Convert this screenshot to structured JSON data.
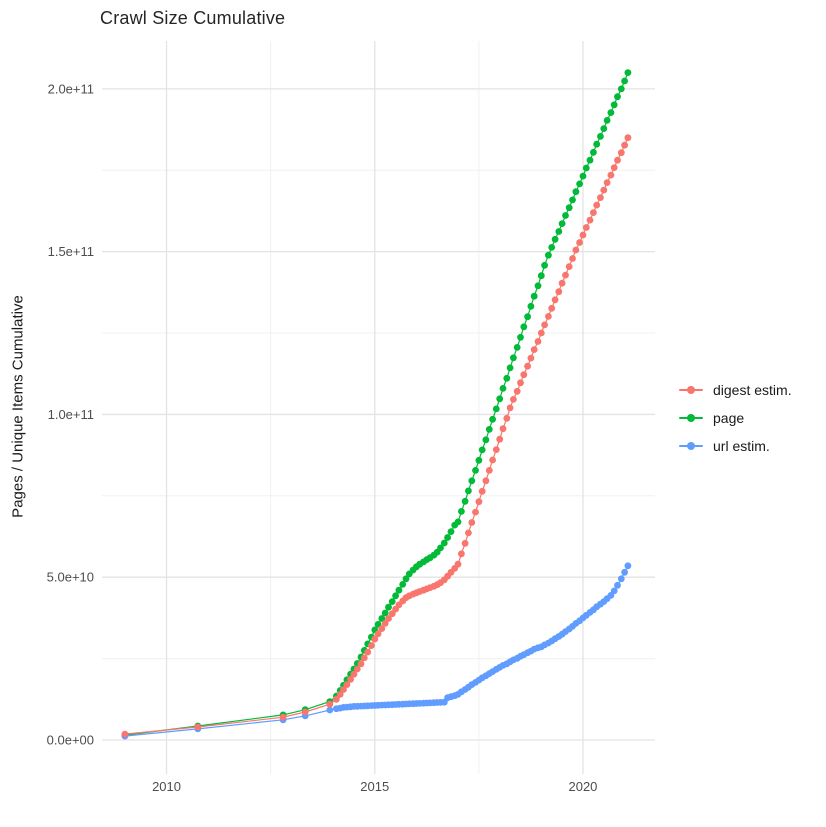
{
  "chart_data": {
    "type": "line",
    "title": "Crawl Size Cumulative",
    "xlabel": "",
    "ylabel": "Pages / Unique Items Cumulative",
    "grid": true,
    "legend_position": "right",
    "value_unit_multiplier": 1000000000.0,
    "xlim": [
      2008.45,
      2021.73
    ],
    "ylim_billions": [
      -10.45,
      214.7
    ],
    "x_ticks": {
      "labels": [
        "2010",
        "2015",
        "2020"
      ],
      "values": [
        2010,
        2015,
        2020
      ]
    },
    "x_minor": [
      2012.5,
      2017.5
    ],
    "y_ticks": {
      "labels": [
        "0.0e+00",
        "5.0e+10",
        "1.0e+11",
        "1.5e+11",
        "2.0e+11"
      ],
      "values_billions": [
        0,
        50,
        100,
        150,
        200
      ]
    },
    "y_minor_billions": [
      25,
      75,
      125,
      175
    ],
    "draw_order": [
      "page",
      "url estim.",
      "digest estim."
    ],
    "series": [
      {
        "name": "digest estim.",
        "color": "#F8766D",
        "points_year_billions": [
          [
            2009,
            1.8
          ],
          [
            2010.75,
            4
          ],
          [
            2012.8,
            7
          ],
          [
            2013.33,
            8.6
          ],
          [
            2013.92,
            11
          ],
          [
            2014.08,
            12.5
          ],
          [
            2014.17,
            14
          ],
          [
            2014.25,
            15.5
          ],
          [
            2014.33,
            17
          ],
          [
            2014.42,
            18.6
          ],
          [
            2014.5,
            20.2
          ],
          [
            2014.58,
            21.8
          ],
          [
            2014.67,
            23.4
          ],
          [
            2014.75,
            25.2
          ],
          [
            2014.83,
            27
          ],
          [
            2014.92,
            29
          ],
          [
            2015,
            31
          ],
          [
            2015.08,
            32.6
          ],
          [
            2015.17,
            34.2
          ],
          [
            2015.25,
            35.8
          ],
          [
            2015.33,
            37.3
          ],
          [
            2015.42,
            38.8
          ],
          [
            2015.5,
            40.2
          ],
          [
            2015.58,
            41.5
          ],
          [
            2015.67,
            42.7
          ],
          [
            2015.75,
            43.7
          ],
          [
            2015.83,
            44.3
          ],
          [
            2015.92,
            44.8
          ],
          [
            2016,
            45.2
          ],
          [
            2016.08,
            45.6
          ],
          [
            2016.17,
            46
          ],
          [
            2016.25,
            46.4
          ],
          [
            2016.33,
            46.8
          ],
          [
            2016.42,
            47.2
          ],
          [
            2016.5,
            47.7
          ],
          [
            2016.58,
            48.3
          ],
          [
            2016.67,
            49.2
          ],
          [
            2016.75,
            50.3
          ],
          [
            2016.83,
            51.5
          ],
          [
            2016.92,
            52.7
          ],
          [
            2017,
            54
          ],
          [
            2017.08,
            57.2
          ],
          [
            2017.17,
            60.4
          ],
          [
            2017.25,
            63.6
          ],
          [
            2017.33,
            66.8
          ],
          [
            2017.42,
            70
          ],
          [
            2017.5,
            73.2
          ],
          [
            2017.58,
            76.4
          ],
          [
            2017.67,
            79.6
          ],
          [
            2017.75,
            82.8
          ],
          [
            2017.83,
            86
          ],
          [
            2017.92,
            89.2
          ],
          [
            2018,
            92.4
          ],
          [
            2018.08,
            95.6
          ],
          [
            2018.17,
            98.8
          ],
          [
            2018.25,
            102
          ],
          [
            2018.33,
            104.6
          ],
          [
            2018.42,
            107.1
          ],
          [
            2018.5,
            109.7
          ],
          [
            2018.58,
            112.2
          ],
          [
            2018.67,
            114.8
          ],
          [
            2018.75,
            117.3
          ],
          [
            2018.83,
            119.9
          ],
          [
            2018.92,
            122.4
          ],
          [
            2019,
            125
          ],
          [
            2019.08,
            127.5
          ],
          [
            2019.17,
            130.1
          ],
          [
            2019.25,
            132.6
          ],
          [
            2019.33,
            135.2
          ],
          [
            2019.42,
            137.7
          ],
          [
            2019.5,
            140.3
          ],
          [
            2019.58,
            142.8
          ],
          [
            2019.67,
            145.4
          ],
          [
            2019.75,
            147.9
          ],
          [
            2019.83,
            150.5
          ],
          [
            2019.92,
            152.8
          ],
          [
            2020,
            155.1
          ],
          [
            2020.08,
            157.4
          ],
          [
            2020.17,
            159.7
          ],
          [
            2020.25,
            162
          ],
          [
            2020.33,
            164.3
          ],
          [
            2020.42,
            166.6
          ],
          [
            2020.5,
            168.9
          ],
          [
            2020.58,
            171.2
          ],
          [
            2020.67,
            173.5
          ],
          [
            2020.75,
            175.8
          ],
          [
            2020.83,
            178.1
          ],
          [
            2020.92,
            180.4
          ],
          [
            2021,
            182.7
          ],
          [
            2021.08,
            185
          ]
        ]
      },
      {
        "name": "page",
        "color": "#00BA38",
        "points_year_billions": [
          [
            2009,
            1.5
          ],
          [
            2010.75,
            4.3
          ],
          [
            2012.8,
            7.7
          ],
          [
            2013.33,
            9.3
          ],
          [
            2013.92,
            11.8
          ],
          [
            2014.08,
            13.5
          ],
          [
            2014.17,
            15.2
          ],
          [
            2014.25,
            16.8
          ],
          [
            2014.33,
            18.5
          ],
          [
            2014.42,
            20.2
          ],
          [
            2014.5,
            21.8
          ],
          [
            2014.58,
            23.5
          ],
          [
            2014.67,
            25.5
          ],
          [
            2014.75,
            27.5
          ],
          [
            2014.83,
            29.5
          ],
          [
            2014.92,
            31.6
          ],
          [
            2015,
            33.8
          ],
          [
            2015.08,
            35.5
          ],
          [
            2015.17,
            37.3
          ],
          [
            2015.25,
            39
          ],
          [
            2015.33,
            40.8
          ],
          [
            2015.42,
            42.5
          ],
          [
            2015.5,
            44.3
          ],
          [
            2015.58,
            46
          ],
          [
            2015.67,
            47.8
          ],
          [
            2015.75,
            49.5
          ],
          [
            2015.83,
            51
          ],
          [
            2015.92,
            52.2
          ],
          [
            2016,
            53.2
          ],
          [
            2016.08,
            54
          ],
          [
            2016.17,
            54.7
          ],
          [
            2016.25,
            55.4
          ],
          [
            2016.33,
            56
          ],
          [
            2016.42,
            56.8
          ],
          [
            2016.5,
            57.7
          ],
          [
            2016.58,
            59
          ],
          [
            2016.67,
            60.5
          ],
          [
            2016.75,
            62.2
          ],
          [
            2016.83,
            64
          ],
          [
            2016.92,
            66
          ],
          [
            2017,
            67
          ],
          [
            2017.08,
            70.2
          ],
          [
            2017.17,
            73.3
          ],
          [
            2017.25,
            76.5
          ],
          [
            2017.33,
            79.6
          ],
          [
            2017.42,
            82.8
          ],
          [
            2017.5,
            85.9
          ],
          [
            2017.58,
            89.1
          ],
          [
            2017.67,
            92.2
          ],
          [
            2017.75,
            95.4
          ],
          [
            2017.83,
            98.5
          ],
          [
            2017.92,
            101.7
          ],
          [
            2018,
            104.8
          ],
          [
            2018.08,
            108
          ],
          [
            2018.17,
            111.1
          ],
          [
            2018.25,
            114.3
          ],
          [
            2018.33,
            117.4
          ],
          [
            2018.42,
            120.6
          ],
          [
            2018.5,
            123.7
          ],
          [
            2018.58,
            126.9
          ],
          [
            2018.67,
            130
          ],
          [
            2018.75,
            133.2
          ],
          [
            2018.83,
            136.3
          ],
          [
            2018.92,
            139.5
          ],
          [
            2019,
            142.6
          ],
          [
            2019.08,
            145.8
          ],
          [
            2019.17,
            148.9
          ],
          [
            2019.25,
            151.3
          ],
          [
            2019.33,
            153.8
          ],
          [
            2019.42,
            156.2
          ],
          [
            2019.5,
            158.6
          ],
          [
            2019.58,
            161.1
          ],
          [
            2019.67,
            163.5
          ],
          [
            2019.75,
            165.9
          ],
          [
            2019.83,
            168.4
          ],
          [
            2019.92,
            170.8
          ],
          [
            2020,
            173.2
          ],
          [
            2020.08,
            175.7
          ],
          [
            2020.17,
            178.1
          ],
          [
            2020.25,
            180.5
          ],
          [
            2020.33,
            183
          ],
          [
            2020.42,
            185.4
          ],
          [
            2020.5,
            187.8
          ],
          [
            2020.58,
            190.3
          ],
          [
            2020.67,
            192.7
          ],
          [
            2020.75,
            195.1
          ],
          [
            2020.83,
            197.6
          ],
          [
            2020.92,
            200
          ],
          [
            2021,
            202.4
          ],
          [
            2021.08,
            205
          ]
        ]
      },
      {
        "name": "url estim.",
        "color": "#619CFF",
        "points_year_billions": [
          [
            2009,
            1.2
          ],
          [
            2010.75,
            3.4
          ],
          [
            2012.8,
            6.2
          ],
          [
            2013.33,
            7.4
          ],
          [
            2013.92,
            9.2
          ],
          [
            2014.08,
            9.6
          ],
          [
            2014.17,
            9.8
          ],
          [
            2014.25,
            10
          ],
          [
            2014.33,
            10.1
          ],
          [
            2014.42,
            10.2
          ],
          [
            2014.5,
            10.3
          ],
          [
            2014.58,
            10.35
          ],
          [
            2014.67,
            10.4
          ],
          [
            2014.75,
            10.45
          ],
          [
            2014.83,
            10.5
          ],
          [
            2014.92,
            10.55
          ],
          [
            2015,
            10.6
          ],
          [
            2015.08,
            10.65
          ],
          [
            2015.17,
            10.7
          ],
          [
            2015.25,
            10.75
          ],
          [
            2015.33,
            10.8
          ],
          [
            2015.42,
            10.85
          ],
          [
            2015.5,
            10.9
          ],
          [
            2015.58,
            10.95
          ],
          [
            2015.67,
            11
          ],
          [
            2015.75,
            11.05
          ],
          [
            2015.83,
            11.1
          ],
          [
            2015.92,
            11.15
          ],
          [
            2016,
            11.2
          ],
          [
            2016.08,
            11.25
          ],
          [
            2016.17,
            11.3
          ],
          [
            2016.25,
            11.35
          ],
          [
            2016.33,
            11.4
          ],
          [
            2016.42,
            11.45
          ],
          [
            2016.5,
            11.5
          ],
          [
            2016.58,
            11.55
          ],
          [
            2016.67,
            11.6
          ],
          [
            2016.75,
            13
          ],
          [
            2016.83,
            13.3
          ],
          [
            2016.92,
            13.6
          ],
          [
            2017,
            14
          ],
          [
            2017.08,
            14.8
          ],
          [
            2017.17,
            15.5
          ],
          [
            2017.25,
            16.2
          ],
          [
            2017.33,
            17
          ],
          [
            2017.42,
            17.7
          ],
          [
            2017.5,
            18.4
          ],
          [
            2017.58,
            19.1
          ],
          [
            2017.67,
            19.7
          ],
          [
            2017.75,
            20.4
          ],
          [
            2017.83,
            21
          ],
          [
            2017.92,
            21.7
          ],
          [
            2018,
            22.3
          ],
          [
            2018.08,
            22.9
          ],
          [
            2018.17,
            23.4
          ],
          [
            2018.25,
            24
          ],
          [
            2018.33,
            24.6
          ],
          [
            2018.42,
            25.1
          ],
          [
            2018.5,
            25.7
          ],
          [
            2018.58,
            26.2
          ],
          [
            2018.67,
            26.8
          ],
          [
            2018.75,
            27.3
          ],
          [
            2018.83,
            27.9
          ],
          [
            2018.92,
            28.3
          ],
          [
            2019,
            28.6
          ],
          [
            2019.08,
            29.2
          ],
          [
            2019.17,
            29.8
          ],
          [
            2019.25,
            30.4
          ],
          [
            2019.33,
            31.1
          ],
          [
            2019.42,
            31.8
          ],
          [
            2019.5,
            32.5
          ],
          [
            2019.58,
            33.3
          ],
          [
            2019.67,
            34.1
          ],
          [
            2019.75,
            34.9
          ],
          [
            2019.83,
            35.8
          ],
          [
            2019.92,
            36.6
          ],
          [
            2020,
            37.5
          ],
          [
            2020.08,
            38.3
          ],
          [
            2020.17,
            39.2
          ],
          [
            2020.25,
            40
          ],
          [
            2020.33,
            40.9
          ],
          [
            2020.42,
            41.7
          ],
          [
            2020.5,
            42.5
          ],
          [
            2020.58,
            43.4
          ],
          [
            2020.67,
            44.4
          ],
          [
            2020.75,
            45.8
          ],
          [
            2020.83,
            47.5
          ],
          [
            2020.92,
            49.5
          ],
          [
            2021,
            51.5
          ],
          [
            2021.08,
            53.5
          ]
        ]
      }
    ],
    "style": {
      "background": "#ffffff",
      "grid_major_color": "#e3e3e3",
      "grid_minor_color": "#f0f0f0",
      "tick_label_color": "#4d4d4d",
      "point_radius_px": 3.4
    }
  }
}
